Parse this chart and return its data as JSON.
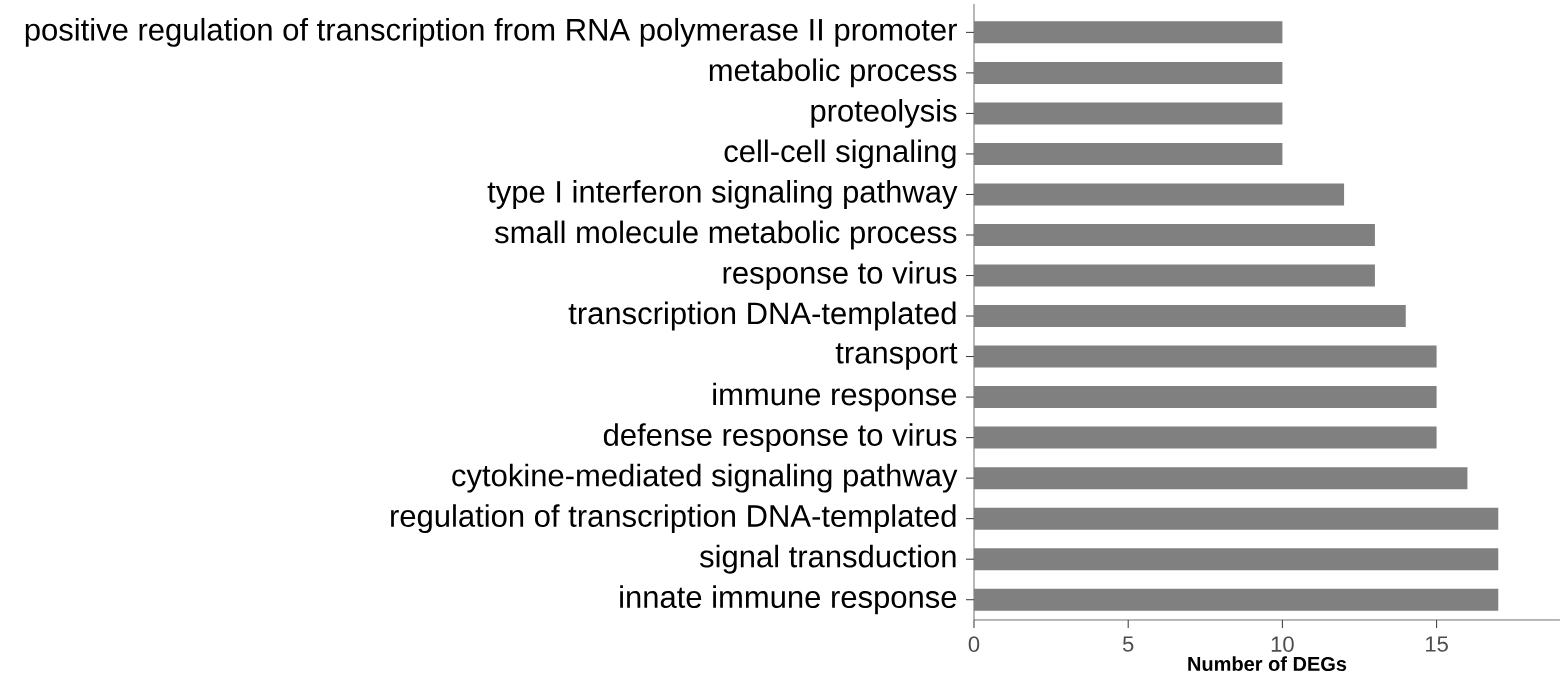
{
  "chart_data": {
    "type": "bar",
    "orientation": "horizontal",
    "xlabel": "Number of DEGs",
    "categories": [
      "positive regulation of transcription from RNA polymerase II promoter",
      "metabolic process",
      "proteolysis",
      "cell-cell signaling",
      "type I interferon signaling pathway",
      "small molecule metabolic process",
      "response to virus",
      "transcription DNA-templated",
      "transport",
      "immune response",
      "defense response to virus",
      "cytokine-mediated signaling pathway",
      "regulation of transcription DNA-templated",
      "signal transduction",
      "innate immune response"
    ],
    "values": [
      10,
      10,
      10,
      10,
      12,
      13,
      13,
      14,
      15,
      15,
      15,
      16,
      17,
      17,
      17
    ],
    "color": "#808080",
    "xlim": [
      0,
      19
    ],
    "xticks": [
      0,
      5,
      10,
      15
    ]
  }
}
